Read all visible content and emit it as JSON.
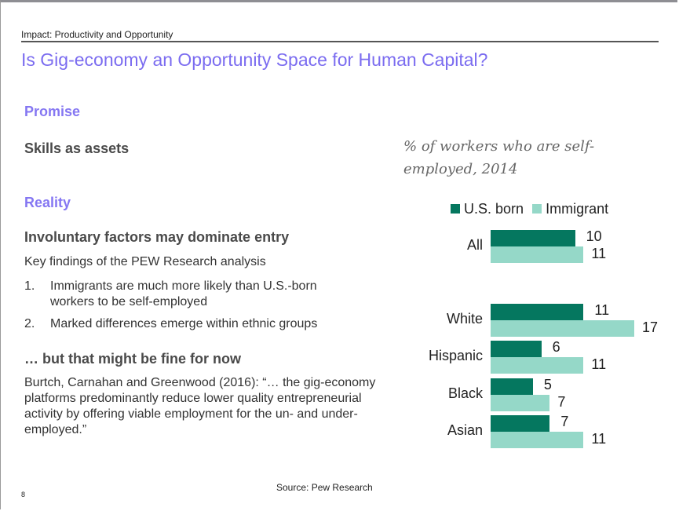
{
  "header": {
    "section": "Impact: Productivity and Opportunity",
    "title": "Is Gig-economy an Opportunity Space for Human Capital?"
  },
  "left": {
    "promise_heading": "Promise",
    "promise_point": "Skills as assets",
    "reality_heading": "Reality",
    "reality_point": "Involuntary factors may dominate entry",
    "findings_intro": "Key findings of the PEW Research analysis",
    "findings": [
      {
        "num": "1.",
        "text": "Immigrants are much more likely than U.S.-born workers to be self-employed"
      },
      {
        "num": "2.",
        "text": "Marked differences emerge within ethnic groups"
      }
    ],
    "caveat_heading": "… but that might be fine for now",
    "quote": "Burtch, Carnahan and Greenwood (2016): “… the gig-economy platforms predominantly reduce lower quality entrepreneurial activity by offering viable employment for the un- and under-employed.”"
  },
  "footer": {
    "source": "Source: Pew Research",
    "page": "8"
  },
  "colors": {
    "us_born": "#05775f",
    "immigrant": "#95d8c8",
    "accent": "#7b6cf0"
  },
  "chart_data": {
    "type": "bar",
    "orientation": "horizontal",
    "title": "% of workers who are self-employed, 2014",
    "categories": [
      "All",
      "White",
      "Hispanic",
      "Black",
      "Asian"
    ],
    "series": [
      {
        "name": "U.S. born",
        "values": [
          10,
          11,
          6,
          5,
          7
        ]
      },
      {
        "name": "Immigrant",
        "values": [
          11,
          17,
          11,
          7,
          11
        ]
      }
    ],
    "legend": "top",
    "grid": false,
    "xlim": [
      0,
      17
    ]
  }
}
